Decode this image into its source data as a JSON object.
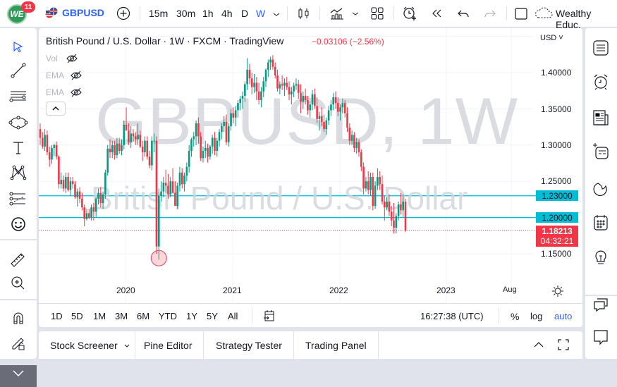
{
  "topbar": {
    "notification_count": "11",
    "logo_text": "WE",
    "symbol": "GBPUSD",
    "intervals": [
      "15m",
      "30m",
      "1h",
      "4h",
      "D",
      "W"
    ],
    "active_interval": "W",
    "account_name": "Wealthy Educ."
  },
  "legend": {
    "title": "British Pound / U.S. Dollar · 1W · FXCM · TradingView",
    "change": "−0.03106 (−2.56%)",
    "indicators": [
      "Vol",
      "EMA",
      "EMA"
    ]
  },
  "watermark": {
    "line1": "GBPUSD, 1W",
    "line2": "British Pound / U.S. Dollar"
  },
  "price_axis": {
    "currency": "USD",
    "ticks": [
      "1.40000",
      "1.35000",
      "1.30000",
      "1.25000",
      "1.15000"
    ],
    "hlines": [
      "1.23000",
      "1.20000"
    ],
    "current_price": "1.18213",
    "countdown": "04:32:21"
  },
  "time_axis": {
    "ticks": [
      "2020",
      "2021",
      "2022",
      "2023",
      "Aug"
    ]
  },
  "range_bar": {
    "ranges": [
      "1D",
      "5D",
      "1M",
      "3M",
      "6M",
      "YTD",
      "1Y",
      "5Y",
      "All"
    ],
    "clock": "16:27:38 (UTC)",
    "percent": "%",
    "log": "log",
    "auto": "auto"
  },
  "bottom_tabs": [
    "Stock Screener",
    "Pine Editor",
    "Strategy Tester",
    "Trading Panel"
  ],
  "colors": {
    "up": "#089981",
    "down": "#f23645",
    "hline": "#00bcd4",
    "accent": "#2962ff"
  },
  "chart_data": {
    "type": "candlestick",
    "title": "British Pound / U.S. Dollar · 1W · FXCM · TradingView",
    "symbol": "GBPUSD",
    "interval": "1W",
    "xlabel": "",
    "ylabel": "USD",
    "x_ticks": [
      "2020",
      "2021",
      "2022",
      "2023",
      "Aug"
    ],
    "y_ticks": [
      1.15,
      1.25,
      1.3,
      1.35,
      1.4
    ],
    "ylim": [
      1.12,
      1.445
    ],
    "grid": true,
    "horizontal_lines": [
      1.23,
      1.2
    ],
    "current_price": 1.18213,
    "change": -0.03106,
    "change_pct": -2.56,
    "annotation": "circle marker at March 2020 low (~1.145)",
    "candles_ohlc_approx": [
      [
        1.322,
        1.33,
        1.3,
        1.31
      ],
      [
        1.31,
        1.318,
        1.295,
        1.298
      ],
      [
        1.298,
        1.322,
        1.292,
        1.314
      ],
      [
        1.314,
        1.32,
        1.286,
        1.29
      ],
      [
        1.29,
        1.298,
        1.27,
        1.28
      ],
      [
        1.28,
        1.3,
        1.274,
        1.296
      ],
      [
        1.296,
        1.302,
        1.285,
        1.3
      ],
      [
        1.3,
        1.305,
        1.28,
        1.284
      ],
      [
        1.284,
        1.286,
        1.24,
        1.246
      ],
      [
        1.246,
        1.262,
        1.24,
        1.252
      ],
      [
        1.252,
        1.258,
        1.236,
        1.24
      ],
      [
        1.24,
        1.262,
        1.234,
        1.256
      ],
      [
        1.256,
        1.262,
        1.236,
        1.238
      ],
      [
        1.238,
        1.256,
        1.23,
        1.25
      ],
      [
        1.25,
        1.256,
        1.24,
        1.246
      ],
      [
        1.246,
        1.25,
        1.226,
        1.228
      ],
      [
        1.228,
        1.24,
        1.215,
        1.236
      ],
      [
        1.236,
        1.242,
        1.22,
        1.226
      ],
      [
        1.226,
        1.234,
        1.21,
        1.214
      ],
      [
        1.214,
        1.218,
        1.188,
        1.198
      ],
      [
        1.198,
        1.212,
        1.196,
        1.206
      ],
      [
        1.206,
        1.212,
        1.198,
        1.2
      ],
      [
        1.2,
        1.218,
        1.196,
        1.214
      ],
      [
        1.214,
        1.22,
        1.196,
        1.208
      ],
      [
        1.208,
        1.228,
        1.2,
        1.226
      ],
      [
        1.226,
        1.24,
        1.218,
        1.234
      ],
      [
        1.234,
        1.242,
        1.214,
        1.22
      ],
      [
        1.22,
        1.236,
        1.212,
        1.232
      ],
      [
        1.232,
        1.266,
        1.226,
        1.262
      ],
      [
        1.262,
        1.3,
        1.258,
        1.295
      ],
      [
        1.295,
        1.308,
        1.282,
        1.29
      ],
      [
        1.29,
        1.306,
        1.282,
        1.3
      ],
      [
        1.3,
        1.306,
        1.28,
        1.286
      ],
      [
        1.286,
        1.31,
        1.282,
        1.302
      ],
      [
        1.302,
        1.31,
        1.288,
        1.292
      ],
      [
        1.292,
        1.308,
        1.286,
        1.3
      ],
      [
        1.3,
        1.334,
        1.294,
        1.328
      ],
      [
        1.328,
        1.352,
        1.32,
        1.32
      ],
      [
        1.32,
        1.33,
        1.3,
        1.304
      ],
      [
        1.304,
        1.326,
        1.296,
        1.316
      ],
      [
        1.316,
        1.322,
        1.305,
        1.312
      ],
      [
        1.312,
        1.318,
        1.3,
        1.308
      ],
      [
        1.308,
        1.33,
        1.3,
        1.314
      ],
      [
        1.314,
        1.32,
        1.296,
        1.298
      ],
      [
        1.298,
        1.306,
        1.278,
        1.29
      ],
      [
        1.29,
        1.312,
        1.284,
        1.306
      ],
      [
        1.306,
        1.312,
        1.28,
        1.284
      ],
      [
        1.284,
        1.292,
        1.268,
        1.272
      ],
      [
        1.272,
        1.312,
        1.265,
        1.306
      ],
      [
        1.306,
        1.316,
        1.29,
        1.306
      ],
      [
        1.306,
        1.312,
        1.15,
        1.16
      ],
      [
        1.16,
        1.24,
        1.142,
        1.23
      ],
      [
        1.23,
        1.25,
        1.222,
        1.236
      ],
      [
        1.236,
        1.256,
        1.228,
        1.248
      ],
      [
        1.248,
        1.266,
        1.234,
        1.244
      ],
      [
        1.244,
        1.26,
        1.226,
        1.232
      ],
      [
        1.232,
        1.256,
        1.228,
        1.25
      ],
      [
        1.25,
        1.268,
        1.24,
        1.234
      ],
      [
        1.234,
        1.25,
        1.22,
        1.216
      ],
      [
        1.216,
        1.248,
        1.212,
        1.244
      ],
      [
        1.244,
        1.27,
        1.236,
        1.262
      ],
      [
        1.262,
        1.268,
        1.24,
        1.246
      ],
      [
        1.246,
        1.262,
        1.236,
        1.258
      ],
      [
        1.258,
        1.276,
        1.25,
        1.27
      ],
      [
        1.27,
        1.3,
        1.262,
        1.292
      ],
      [
        1.292,
        1.31,
        1.284,
        1.308
      ],
      [
        1.308,
        1.318,
        1.298,
        1.312
      ],
      [
        1.312,
        1.334,
        1.3,
        1.33
      ],
      [
        1.33,
        1.338,
        1.302,
        1.312
      ],
      [
        1.312,
        1.318,
        1.278,
        1.282
      ],
      [
        1.282,
        1.298,
        1.276,
        1.292
      ],
      [
        1.292,
        1.306,
        1.282,
        1.296
      ],
      [
        1.296,
        1.302,
        1.276,
        1.284
      ],
      [
        1.284,
        1.3,
        1.28,
        1.298
      ],
      [
        1.298,
        1.314,
        1.288,
        1.31
      ],
      [
        1.31,
        1.318,
        1.286,
        1.292
      ],
      [
        1.292,
        1.31,
        1.284,
        1.306
      ],
      [
        1.306,
        1.322,
        1.298,
        1.318
      ],
      [
        1.318,
        1.33,
        1.308,
        1.326
      ],
      [
        1.326,
        1.34,
        1.318,
        1.332
      ],
      [
        1.332,
        1.342,
        1.3,
        1.304
      ],
      [
        1.304,
        1.33,
        1.298,
        1.326
      ],
      [
        1.326,
        1.35,
        1.32,
        1.344
      ],
      [
        1.344,
        1.352,
        1.33,
        1.338
      ],
      [
        1.338,
        1.354,
        1.326,
        1.348
      ],
      [
        1.348,
        1.362,
        1.338,
        1.358
      ],
      [
        1.358,
        1.368,
        1.348,
        1.364
      ],
      [
        1.364,
        1.374,
        1.35,
        1.368
      ],
      [
        1.368,
        1.388,
        1.36,
        1.384
      ],
      [
        1.384,
        1.42,
        1.376,
        1.404
      ],
      [
        1.404,
        1.412,
        1.384,
        1.392
      ],
      [
        1.392,
        1.4,
        1.37,
        1.38
      ],
      [
        1.38,
        1.398,
        1.372,
        1.386
      ],
      [
        1.386,
        1.394,
        1.362,
        1.374
      ],
      [
        1.374,
        1.386,
        1.356,
        1.362
      ],
      [
        1.362,
        1.38,
        1.352,
        1.374
      ],
      [
        1.374,
        1.394,
        1.366,
        1.388
      ],
      [
        1.388,
        1.406,
        1.38,
        1.404
      ],
      [
        1.404,
        1.418,
        1.394,
        1.414
      ],
      [
        1.414,
        1.422,
        1.404,
        1.418
      ],
      [
        1.418,
        1.424,
        1.404,
        1.408
      ],
      [
        1.408,
        1.414,
        1.392,
        1.396
      ],
      [
        1.396,
        1.404,
        1.374,
        1.378
      ],
      [
        1.378,
        1.388,
        1.37,
        1.384
      ],
      [
        1.384,
        1.396,
        1.376,
        1.382
      ],
      [
        1.382,
        1.392,
        1.368,
        1.386
      ],
      [
        1.386,
        1.394,
        1.376,
        1.38
      ],
      [
        1.38,
        1.388,
        1.362,
        1.37
      ],
      [
        1.37,
        1.38,
        1.356,
        1.374
      ],
      [
        1.374,
        1.386,
        1.366,
        1.382
      ],
      [
        1.382,
        1.392,
        1.376,
        1.384
      ],
      [
        1.384,
        1.39,
        1.364,
        1.372
      ],
      [
        1.372,
        1.384,
        1.344,
        1.36
      ],
      [
        1.36,
        1.374,
        1.35,
        1.368
      ],
      [
        1.368,
        1.378,
        1.356,
        1.362
      ],
      [
        1.362,
        1.368,
        1.342,
        1.348
      ],
      [
        1.348,
        1.36,
        1.338,
        1.356
      ],
      [
        1.356,
        1.376,
        1.348,
        1.37
      ],
      [
        1.37,
        1.378,
        1.35,
        1.354
      ],
      [
        1.354,
        1.366,
        1.33,
        1.336
      ],
      [
        1.336,
        1.346,
        1.32,
        1.34
      ],
      [
        1.34,
        1.352,
        1.326,
        1.332
      ],
      [
        1.332,
        1.342,
        1.318,
        1.322
      ],
      [
        1.322,
        1.338,
        1.314,
        1.334
      ],
      [
        1.334,
        1.354,
        1.328,
        1.348
      ],
      [
        1.348,
        1.362,
        1.34,
        1.356
      ],
      [
        1.356,
        1.372,
        1.348,
        1.366
      ],
      [
        1.366,
        1.374,
        1.35,
        1.358
      ],
      [
        1.358,
        1.366,
        1.34,
        1.346
      ],
      [
        1.346,
        1.356,
        1.334,
        1.352
      ],
      [
        1.352,
        1.364,
        1.344,
        1.358
      ],
      [
        1.358,
        1.362,
        1.338,
        1.344
      ],
      [
        1.344,
        1.352,
        1.318,
        1.324
      ],
      [
        1.324,
        1.33,
        1.3,
        1.306
      ],
      [
        1.306,
        1.32,
        1.3,
        1.314
      ],
      [
        1.314,
        1.318,
        1.29,
        1.296
      ],
      [
        1.296,
        1.31,
        1.288,
        1.304
      ],
      [
        1.304,
        1.308,
        1.284,
        1.29
      ],
      [
        1.29,
        1.294,
        1.264,
        1.27
      ],
      [
        1.27,
        1.276,
        1.232,
        1.24
      ],
      [
        1.24,
        1.256,
        1.236,
        1.25
      ],
      [
        1.25,
        1.264,
        1.232,
        1.238
      ],
      [
        1.238,
        1.262,
        1.23,
        1.256
      ],
      [
        1.256,
        1.262,
        1.21,
        1.216
      ],
      [
        1.216,
        1.25,
        1.212,
        1.244
      ],
      [
        1.244,
        1.268,
        1.238,
        1.256
      ],
      [
        1.256,
        1.264,
        1.238,
        1.246
      ],
      [
        1.246,
        1.258,
        1.218,
        1.222
      ],
      [
        1.222,
        1.23,
        1.196,
        1.214
      ],
      [
        1.214,
        1.228,
        1.21,
        1.222
      ],
      [
        1.222,
        1.232,
        1.202,
        1.208
      ],
      [
        1.208,
        1.216,
        1.188,
        1.196
      ],
      [
        1.196,
        1.22,
        1.178,
        1.186
      ],
      [
        1.186,
        1.206,
        1.178,
        1.202
      ],
      [
        1.202,
        1.222,
        1.196,
        1.218
      ],
      [
        1.218,
        1.234,
        1.204,
        1.21
      ],
      [
        1.21,
        1.232,
        1.2,
        1.222
      ],
      [
        1.222,
        1.226,
        1.18,
        1.182
      ]
    ]
  }
}
